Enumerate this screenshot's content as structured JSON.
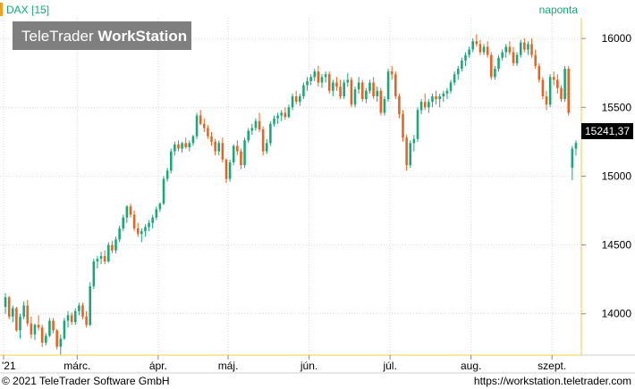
{
  "header": {
    "symbol_label": "DAX [15]",
    "interval_label": "naponta",
    "watermark_part1": "TeleTrader ",
    "watermark_part2": "WorkStation"
  },
  "footer": {
    "copyright": "© 2021  TeleTrader Software GmbH",
    "url": "https://workstation.teletrader.com"
  },
  "colors": {
    "up": "#1aa67a",
    "down": "#e8621f",
    "axis_border": "#f2cc44",
    "grid": "#d9d9d9",
    "header_text": "#1aa67a"
  },
  "chart_data": {
    "type": "candlestick",
    "title": "DAX [15]",
    "interval": "naponta",
    "last_value_label": "15241,37",
    "last_value": 15241.37,
    "ylim": [
      13700,
      16150
    ],
    "y_ticks": [
      {
        "value": 14000,
        "label": "14000"
      },
      {
        "value": 14500,
        "label": "14500"
      },
      {
        "value": 15000,
        "label": "15000"
      },
      {
        "value": 15500,
        "label": "15500"
      },
      {
        "value": 16000,
        "label": "16000"
      }
    ],
    "x_ticks": [
      {
        "index": 0,
        "label": "'21"
      },
      {
        "index": 20,
        "label": "márc."
      },
      {
        "index": 42,
        "label": "ápr."
      },
      {
        "index": 61,
        "label": "máj."
      },
      {
        "index": 83,
        "label": "jún."
      },
      {
        "index": 105,
        "label": "júl."
      },
      {
        "index": 127,
        "label": "aug."
      },
      {
        "index": 149,
        "label": "szept."
      }
    ],
    "candles": [
      [
        14050,
        14150,
        14000,
        14120
      ],
      [
        14120,
        14130,
        13960,
        13980
      ],
      [
        13980,
        14060,
        13940,
        14040
      ],
      [
        14040,
        14050,
        13870,
        13880
      ],
      [
        13880,
        14000,
        13820,
        13980
      ],
      [
        13980,
        14090,
        13960,
        14060
      ],
      [
        14060,
        14100,
        13910,
        13930
      ],
      [
        13930,
        13980,
        13820,
        13850
      ],
      [
        13850,
        13930,
        13810,
        13920
      ],
      [
        13920,
        13990,
        13880,
        13900
      ],
      [
        13900,
        13920,
        13760,
        13790
      ],
      [
        13790,
        13860,
        13770,
        13840
      ],
      [
        13840,
        13970,
        13830,
        13950
      ],
      [
        13950,
        13970,
        13860,
        13880
      ],
      [
        13880,
        13890,
        13740,
        13760
      ],
      [
        13760,
        13850,
        13700,
        13820
      ],
      [
        13820,
        13970,
        13810,
        13950
      ],
      [
        13950,
        14020,
        13900,
        13990
      ],
      [
        13990,
        14010,
        13920,
        13940
      ],
      [
        13940,
        14040,
        13920,
        14020
      ],
      [
        14020,
        14080,
        13990,
        14060
      ],
      [
        14060,
        14080,
        13960,
        13980
      ],
      [
        13980,
        14020,
        13900,
        13920
      ],
      [
        13920,
        14230,
        13910,
        14200
      ],
      [
        14200,
        14400,
        14180,
        14380
      ],
      [
        14380,
        14420,
        14330,
        14400
      ],
      [
        14400,
        14450,
        14360,
        14420
      ],
      [
        14420,
        14460,
        14360,
        14380
      ],
      [
        14380,
        14520,
        14370,
        14500
      ],
      [
        14500,
        14530,
        14440,
        14460
      ],
      [
        14460,
        14560,
        14440,
        14540
      ],
      [
        14540,
        14640,
        14520,
        14620
      ],
      [
        14620,
        14720,
        14600,
        14700
      ],
      [
        14700,
        14790,
        14660,
        14780
      ],
      [
        14780,
        14800,
        14700,
        14720
      ],
      [
        14720,
        14750,
        14600,
        14620
      ],
      [
        14620,
        14660,
        14560,
        14580
      ],
      [
        14580,
        14620,
        14520,
        14600
      ],
      [
        14600,
        14650,
        14560,
        14630
      ],
      [
        14630,
        14680,
        14600,
        14660
      ],
      [
        14660,
        14720,
        14620,
        14700
      ],
      [
        14700,
        14780,
        14680,
        14760
      ],
      [
        14760,
        14810,
        14740,
        14800
      ],
      [
        14800,
        15000,
        14790,
        14980
      ],
      [
        14980,
        15060,
        14960,
        15040
      ],
      [
        15040,
        15200,
        15020,
        15180
      ],
      [
        15180,
        15250,
        15150,
        15230
      ],
      [
        15230,
        15260,
        15180,
        15200
      ],
      [
        15200,
        15250,
        15170,
        15240
      ],
      [
        15240,
        15280,
        15200,
        15210
      ],
      [
        15210,
        15260,
        15180,
        15240
      ],
      [
        15240,
        15300,
        15220,
        15290
      ],
      [
        15290,
        15460,
        15270,
        15440
      ],
      [
        15440,
        15480,
        15370,
        15380
      ],
      [
        15380,
        15420,
        15320,
        15350
      ],
      [
        15350,
        15370,
        15270,
        15290
      ],
      [
        15290,
        15320,
        15220,
        15250
      ],
      [
        15250,
        15270,
        15150,
        15180
      ],
      [
        15180,
        15260,
        15150,
        15240
      ],
      [
        15240,
        15280,
        15100,
        15120
      ],
      [
        15120,
        15130,
        14950,
        14980
      ],
      [
        14980,
        15120,
        14960,
        15100
      ],
      [
        15100,
        15230,
        15080,
        15220
      ],
      [
        15220,
        15260,
        15150,
        15180
      ],
      [
        15180,
        15200,
        15050,
        15080
      ],
      [
        15080,
        15280,
        15060,
        15260
      ],
      [
        15260,
        15350,
        15240,
        15330
      ],
      [
        15330,
        15380,
        15300,
        15350
      ],
      [
        15350,
        15420,
        15330,
        15400
      ],
      [
        15400,
        15460,
        15320,
        15340
      ],
      [
        15340,
        15360,
        15150,
        15180
      ],
      [
        15180,
        15270,
        15160,
        15240
      ],
      [
        15240,
        15400,
        15220,
        15380
      ],
      [
        15380,
        15440,
        15360,
        15420
      ],
      [
        15420,
        15460,
        15380,
        15440
      ],
      [
        15440,
        15480,
        15400,
        15460
      ],
      [
        15460,
        15500,
        15410,
        15430
      ],
      [
        15430,
        15520,
        15420,
        15500
      ],
      [
        15500,
        15600,
        15480,
        15580
      ],
      [
        15580,
        15620,
        15520,
        15540
      ],
      [
        15540,
        15600,
        15510,
        15580
      ],
      [
        15580,
        15680,
        15560,
        15660
      ],
      [
        15660,
        15720,
        15620,
        15690
      ],
      [
        15690,
        15740,
        15660,
        15720
      ],
      [
        15720,
        15780,
        15690,
        15760
      ],
      [
        15760,
        15800,
        15650,
        15680
      ],
      [
        15680,
        15740,
        15640,
        15720
      ],
      [
        15720,
        15760,
        15680,
        15740
      ],
      [
        15740,
        15760,
        15600,
        15620
      ],
      [
        15620,
        15700,
        15580,
        15680
      ],
      [
        15680,
        15720,
        15620,
        15650
      ],
      [
        15650,
        15700,
        15560,
        15580
      ],
      [
        15580,
        15700,
        15560,
        15680
      ],
      [
        15680,
        15750,
        15650,
        15700
      ],
      [
        15700,
        15720,
        15500,
        15520
      ],
      [
        15520,
        15650,
        15500,
        15630
      ],
      [
        15630,
        15720,
        15600,
        15680
      ],
      [
        15680,
        15700,
        15540,
        15560
      ],
      [
        15560,
        15640,
        15530,
        15620
      ],
      [
        15620,
        15700,
        15600,
        15680
      ],
      [
        15680,
        15720,
        15560,
        15580
      ],
      [
        15580,
        15650,
        15540,
        15620
      ],
      [
        15620,
        15640,
        15440,
        15460
      ],
      [
        15460,
        15580,
        15440,
        15560
      ],
      [
        15560,
        15780,
        15540,
        15760
      ],
      [
        15760,
        15800,
        15700,
        15740
      ],
      [
        15740,
        15760,
        15560,
        15580
      ],
      [
        15580,
        15600,
        15420,
        15450
      ],
      [
        15450,
        15480,
        15250,
        15280
      ],
      [
        15280,
        15300,
        15040,
        15080
      ],
      [
        15080,
        15260,
        15060,
        15240
      ],
      [
        15240,
        15300,
        15180,
        15270
      ],
      [
        15270,
        15500,
        15250,
        15480
      ],
      [
        15480,
        15560,
        15450,
        15540
      ],
      [
        15540,
        15600,
        15480,
        15500
      ],
      [
        15500,
        15560,
        15460,
        15540
      ],
      [
        15540,
        15600,
        15500,
        15580
      ],
      [
        15580,
        15620,
        15520,
        15560
      ],
      [
        15560,
        15600,
        15500,
        15580
      ],
      [
        15580,
        15620,
        15540,
        15600
      ],
      [
        15600,
        15640,
        15560,
        15620
      ],
      [
        15620,
        15700,
        15600,
        15680
      ],
      [
        15680,
        15760,
        15660,
        15740
      ],
      [
        15740,
        15800,
        15700,
        15780
      ],
      [
        15780,
        15860,
        15760,
        15840
      ],
      [
        15840,
        15900,
        15800,
        15880
      ],
      [
        15880,
        15940,
        15860,
        15920
      ],
      [
        15920,
        16000,
        15900,
        15980
      ],
      [
        15980,
        16030,
        15940,
        15960
      ],
      [
        15960,
        15990,
        15880,
        15900
      ],
      [
        15900,
        15960,
        15880,
        15940
      ],
      [
        15940,
        15980,
        15860,
        15880
      ],
      [
        15880,
        15900,
        15700,
        15720
      ],
      [
        15720,
        15800,
        15700,
        15780
      ],
      [
        15780,
        15880,
        15760,
        15860
      ],
      [
        15860,
        15920,
        15840,
        15900
      ],
      [
        15900,
        15960,
        15860,
        15940
      ],
      [
        15940,
        15980,
        15880,
        15900
      ],
      [
        15900,
        15940,
        15800,
        15820
      ],
      [
        15820,
        15900,
        15800,
        15880
      ],
      [
        15880,
        15990,
        15860,
        15970
      ],
      [
        15970,
        16000,
        15900,
        15920
      ],
      [
        15920,
        15980,
        15880,
        15960
      ],
      [
        15960,
        16000,
        15860,
        15880
      ],
      [
        15880,
        15920,
        15780,
        15800
      ],
      [
        15800,
        15820,
        15680,
        15700
      ],
      [
        15700,
        15720,
        15560,
        15580
      ],
      [
        15580,
        15620,
        15480,
        15520
      ],
      [
        15520,
        15740,
        15500,
        15720
      ],
      [
        15720,
        15760,
        15660,
        15700
      ],
      [
        15700,
        15740,
        15600,
        15640
      ],
      [
        15640,
        15660,
        15540,
        15560
      ],
      [
        15560,
        15800,
        15540,
        15780
      ],
      [
        15780,
        15800,
        15440,
        15460
      ],
      [
        15060,
        15220,
        14970,
        15200
      ],
      [
        15200,
        15260,
        15150,
        15241
      ]
    ]
  }
}
